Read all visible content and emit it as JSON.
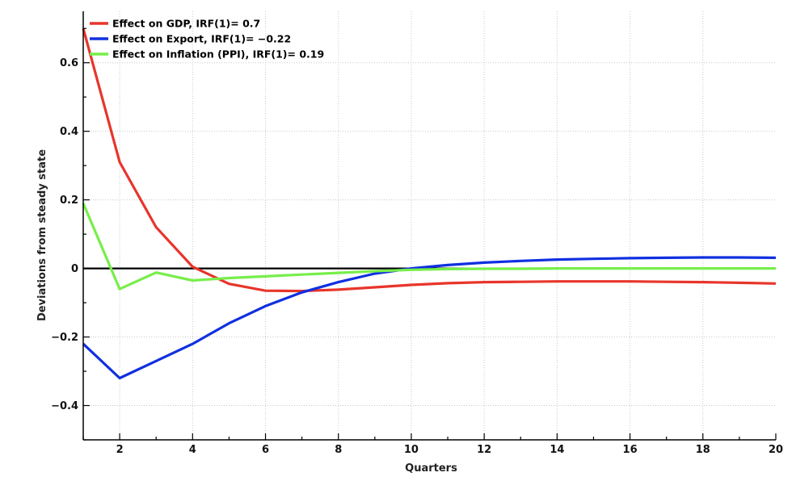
{
  "chart_data": {
    "type": "line",
    "title": "",
    "xlabel": "Quarters",
    "ylabel": "Deviations from steady state",
    "xlim": [
      1,
      20
    ],
    "ylim": [
      -0.5,
      0.75
    ],
    "x_ticks": [
      2,
      4,
      6,
      8,
      10,
      12,
      14,
      16,
      18,
      20
    ],
    "y_ticks": [
      -0.4,
      -0.2,
      0,
      0.2,
      0.4,
      0.6
    ],
    "y_tick_labels": [
      "−0.4",
      "−0.2",
      "0",
      "0.2",
      "0.4",
      "0.6"
    ],
    "grid": true,
    "legend_position": "top-left",
    "zero_line": true,
    "x": [
      1,
      2,
      3,
      4,
      5,
      6,
      7,
      8,
      9,
      10,
      11,
      12,
      13,
      14,
      15,
      16,
      17,
      18,
      19,
      20
    ],
    "series": [
      {
        "name": "Effect on GDP, IRF(1)= 0.7",
        "color": "#e8352b",
        "values": [
          0.7,
          0.31,
          0.12,
          0.005,
          -0.045,
          -0.065,
          -0.066,
          -0.062,
          -0.055,
          -0.048,
          -0.043,
          -0.04,
          -0.039,
          -0.038,
          -0.038,
          -0.038,
          -0.039,
          -0.04,
          -0.042,
          -0.044
        ]
      },
      {
        "name": "Effect on Export, IRF(1)= −0.22",
        "color": "#1030e0",
        "values": [
          -0.22,
          -0.32,
          -0.27,
          -0.22,
          -0.16,
          -0.11,
          -0.07,
          -0.04,
          -0.015,
          0.0,
          0.01,
          0.017,
          0.022,
          0.026,
          0.028,
          0.03,
          0.031,
          0.032,
          0.032,
          0.031
        ]
      },
      {
        "name": "Effect on Inflation (PPI), IRF(1)= 0.19",
        "color": "#77ee4a",
        "values": [
          0.19,
          -0.06,
          -0.012,
          -0.035,
          -0.028,
          -0.023,
          -0.018,
          -0.013,
          -0.008,
          -0.004,
          -0.002,
          -0.001,
          -0.001,
          0.0,
          0.0,
          0.0,
          0.0,
          0.0,
          0.0,
          0.0
        ]
      }
    ]
  }
}
